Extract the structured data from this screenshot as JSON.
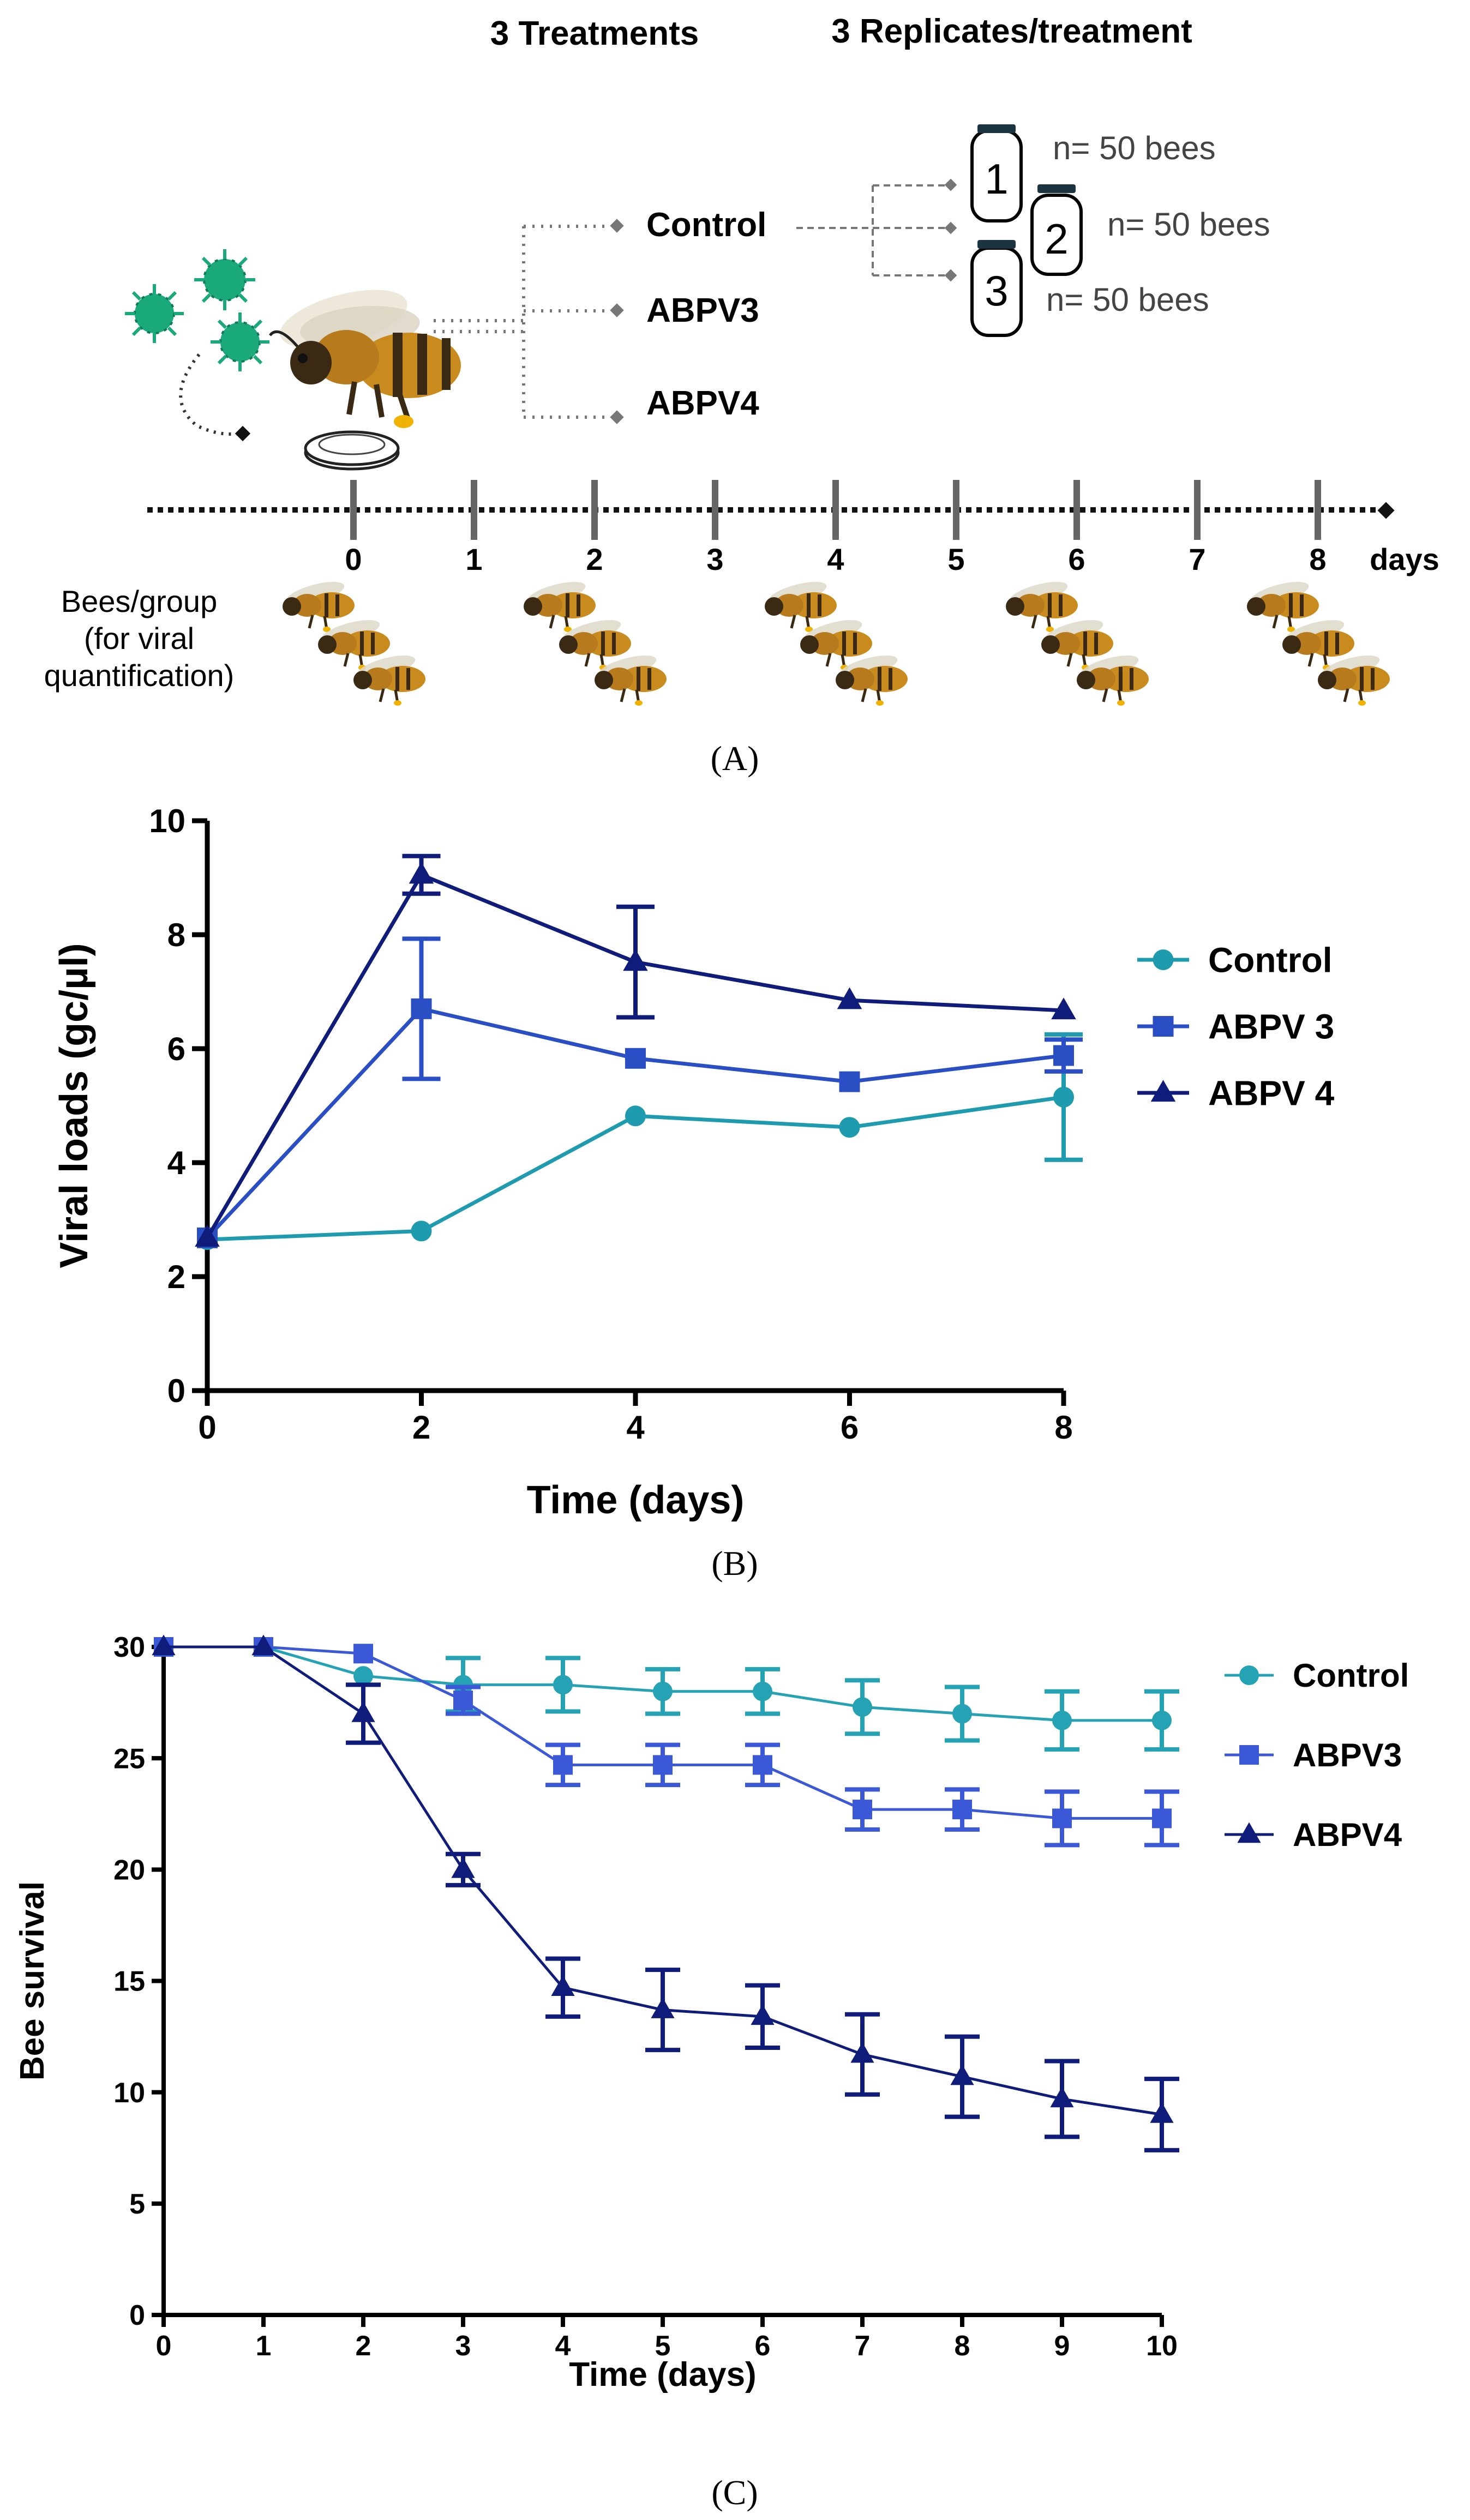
{
  "panel_a": {
    "heading_treatments": "3 Treatments",
    "heading_replicates": "3  Replicates/treatment",
    "treatments": [
      "Control",
      "ABPV3",
      "ABPV4"
    ],
    "replicates": [
      {
        "number": "1",
        "count": "n= 50 bees"
      },
      {
        "number": "2",
        "count": "n= 50 bees"
      },
      {
        "number": "3",
        "count": "n= 50 bees"
      }
    ],
    "timeline_days": [
      "0",
      "1",
      "2",
      "3",
      "4",
      "5",
      "6",
      "7",
      "8"
    ],
    "timeline_unit": "days",
    "sampling_days": [
      "0",
      "2",
      "4",
      "6",
      "8"
    ],
    "bees_label_lines": [
      "Bees/group",
      "(for viral",
      "quantification)"
    ],
    "caption": "(A)",
    "colors": {
      "virus": "#1aa97a",
      "bee_body": "#c98a1e",
      "line": "#777777",
      "text": "#000000"
    }
  },
  "chart_data": [
    {
      "type": "line",
      "caption": "(B)",
      "xlabel": "Time (days)",
      "ylabel": "Viral loads (gc/µl)",
      "x": [
        0,
        2,
        4,
        6,
        8
      ],
      "xticks": [
        "0",
        "2",
        "4",
        "6",
        "8"
      ],
      "yticks": [
        "0",
        "2",
        "4",
        "6",
        "8",
        "10"
      ],
      "xlim": [
        0,
        8
      ],
      "ylim": [
        0,
        10
      ],
      "legend_position": "right",
      "series": [
        {
          "name": "Control",
          "marker": "circle",
          "color": "#1f9bb0",
          "values": [
            2.65,
            2.8,
            4.82,
            4.62,
            5.15
          ],
          "err": [
            0,
            0,
            0,
            0,
            1.1
          ]
        },
        {
          "name": "ABPV 3",
          "marker": "square",
          "color": "#2a4fc4",
          "values": [
            2.68,
            6.7,
            5.83,
            5.42,
            5.88
          ],
          "err": [
            0,
            1.23,
            0,
            0,
            0.28
          ]
        },
        {
          "name": "ABPV 4",
          "marker": "triangle",
          "color": "#0f1c7a",
          "values": [
            2.68,
            9.05,
            7.52,
            6.85,
            6.67
          ],
          "err": [
            0,
            0.33,
            0.97,
            0,
            0
          ]
        }
      ]
    },
    {
      "type": "line",
      "caption": "(C)",
      "xlabel": "Time (days)",
      "ylabel": "Bee survival",
      "x": [
        0,
        1,
        2,
        3,
        4,
        5,
        6,
        7,
        8,
        9,
        10
      ],
      "xticks": [
        "0",
        "1",
        "2",
        "3",
        "4",
        "5",
        "6",
        "7",
        "8",
        "9",
        "10"
      ],
      "yticks": [
        "0",
        "5",
        "10",
        "15",
        "20",
        "25",
        "30"
      ],
      "xlim": [
        0,
        10
      ],
      "ylim": [
        0,
        30
      ],
      "legend_position": "top-right",
      "series": [
        {
          "name": "Control",
          "marker": "circle",
          "color": "#26a2b5",
          "values": [
            30,
            30,
            28.7,
            28.3,
            28.3,
            28.0,
            28.0,
            27.3,
            27.0,
            26.7,
            26.7
          ],
          "err": [
            0,
            0,
            0,
            1.2,
            1.2,
            1.0,
            1.0,
            1.2,
            1.2,
            1.3,
            1.3
          ]
        },
        {
          "name": "ABPV3",
          "marker": "square",
          "color": "#3b59d6",
          "values": [
            30,
            30,
            29.7,
            27.6,
            24.7,
            24.7,
            24.7,
            22.7,
            22.7,
            22.3,
            22.3
          ],
          "err": [
            0,
            0,
            0,
            0.6,
            0.9,
            0.9,
            0.9,
            0.9,
            0.9,
            1.2,
            1.2
          ]
        },
        {
          "name": "ABPV4",
          "marker": "triangle",
          "color": "#0f1c7a",
          "values": [
            30,
            30,
            27.0,
            20.0,
            14.7,
            13.7,
            13.4,
            11.7,
            10.7,
            9.7,
            9.0
          ],
          "err": [
            0,
            0,
            1.3,
            0.7,
            1.3,
            1.8,
            1.4,
            1.8,
            1.8,
            1.7,
            1.6
          ]
        }
      ]
    }
  ]
}
